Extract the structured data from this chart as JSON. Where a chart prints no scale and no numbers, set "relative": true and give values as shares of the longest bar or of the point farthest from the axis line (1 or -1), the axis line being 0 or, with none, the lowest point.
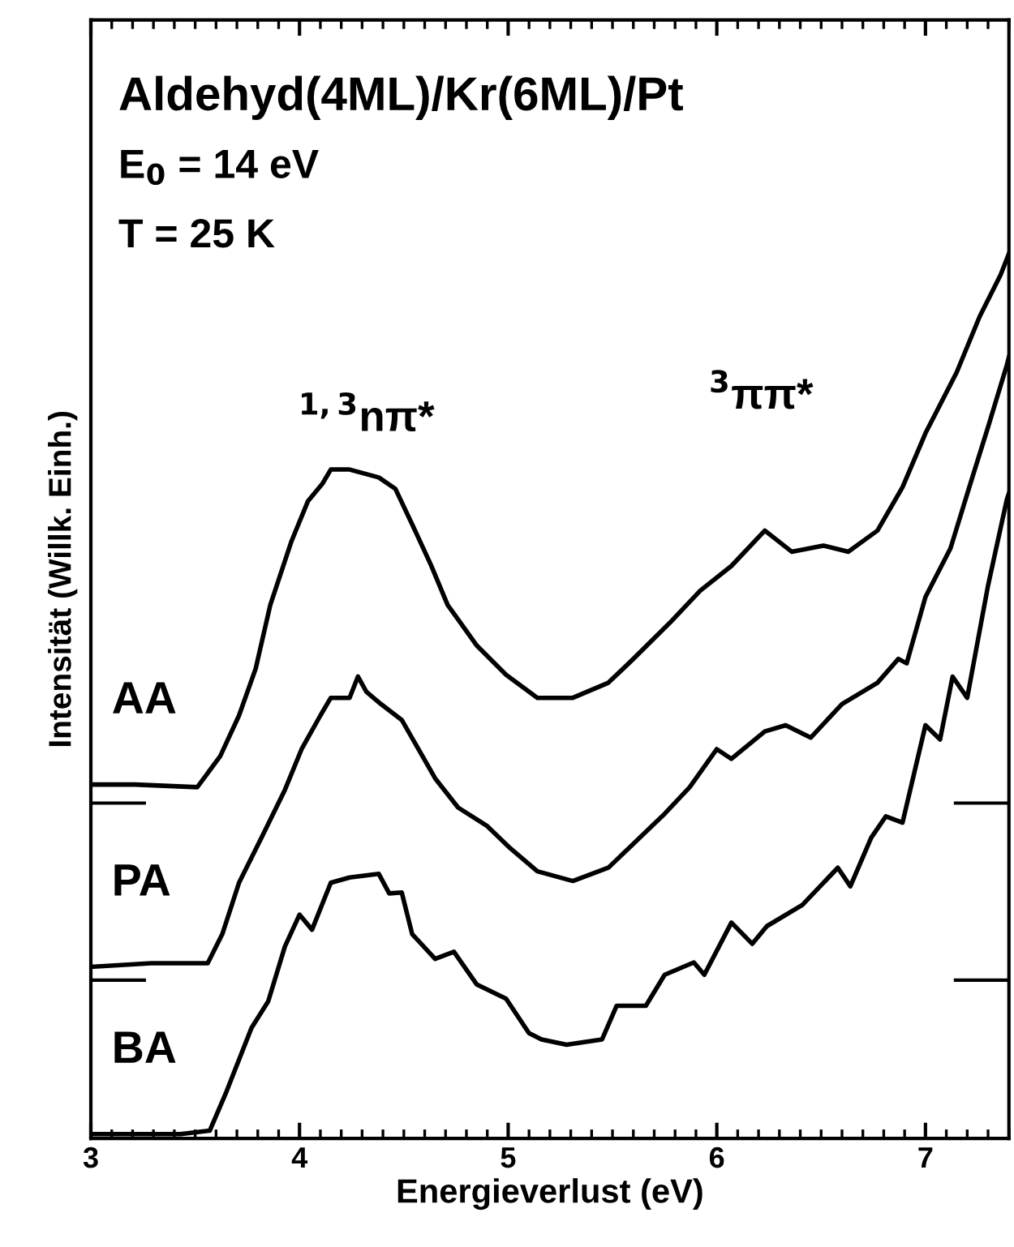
{
  "chart_data": {
    "type": "line",
    "relative": true,
    "title": "Aldehyd(4ML)/Kr(6ML)/Pt",
    "xlabel": "Energieverlust (eV)",
    "ylabel": "Intensität (Willk. Einh.)",
    "xlim": [
      3,
      7.4
    ],
    "xticks": [
      3,
      4,
      5,
      6,
      7
    ],
    "grid": false,
    "legend": "left",
    "annotations": [
      "E$_{0}$ = 14 eV",
      "T = 25 K",
      "$^{1,3}$nπ*",
      "$^{3}$ππ*"
    ],
    "ref_lines": [
      {
        "axis": "y",
        "value": 0.379,
        "color": "#000000"
      },
      {
        "axis": "y",
        "value": 0.179,
        "color": "#000000"
      }
    ],
    "series": [
      {
        "name": "AA",
        "color": "#000000",
        "x": [
          3.0,
          3.21,
          3.51,
          3.62,
          3.71,
          3.79,
          3.86,
          3.96,
          4.04,
          4.11,
          4.15,
          4.24,
          4.38,
          4.46,
          4.54,
          4.63,
          4.71,
          4.85,
          4.99,
          5.14,
          5.31,
          5.48,
          5.6,
          5.78,
          5.92,
          6.07,
          6.23,
          6.36,
          6.51,
          6.63,
          6.77,
          6.89,
          7.0,
          7.15,
          7.26,
          7.36,
          7.4
        ],
        "values": [
          0.4,
          0.4,
          0.397,
          0.432,
          0.478,
          0.531,
          0.603,
          0.674,
          0.72,
          0.74,
          0.756,
          0.756,
          0.747,
          0.734,
          0.694,
          0.648,
          0.603,
          0.557,
          0.524,
          0.498,
          0.498,
          0.515,
          0.542,
          0.584,
          0.619,
          0.647,
          0.687,
          0.663,
          0.67,
          0.663,
          0.687,
          0.736,
          0.797,
          0.866,
          0.929,
          0.976,
          1.0
        ]
      },
      {
        "name": "PA",
        "color": "#000000",
        "x": [
          3.0,
          3.29,
          3.56,
          3.63,
          3.71,
          3.82,
          3.93,
          4.01,
          4.1,
          4.15,
          4.24,
          4.28,
          4.32,
          4.39,
          4.49,
          4.57,
          4.65,
          4.76,
          4.9,
          5.01,
          5.14,
          5.31,
          5.48,
          5.6,
          5.75,
          5.87,
          6.0,
          6.07,
          6.23,
          6.33,
          6.45,
          6.6,
          6.77,
          6.87,
          6.91,
          7.0,
          7.12,
          7.21,
          7.3,
          7.39,
          7.4
        ],
        "values": [
          0.194,
          0.198,
          0.198,
          0.231,
          0.289,
          0.341,
          0.394,
          0.44,
          0.478,
          0.498,
          0.498,
          0.522,
          0.505,
          0.491,
          0.473,
          0.44,
          0.407,
          0.374,
          0.353,
          0.328,
          0.302,
          0.291,
          0.306,
          0.333,
          0.367,
          0.397,
          0.44,
          0.429,
          0.46,
          0.467,
          0.453,
          0.491,
          0.515,
          0.542,
          0.537,
          0.612,
          0.667,
          0.736,
          0.804,
          0.874,
          0.883
        ]
      },
      {
        "name": "BA",
        "color": "#000000",
        "x": [
          3.0,
          3.43,
          3.57,
          3.65,
          3.77,
          3.85,
          3.93,
          4.0,
          4.06,
          4.15,
          4.24,
          4.38,
          4.43,
          4.49,
          4.54,
          4.65,
          4.74,
          4.85,
          4.99,
          5.1,
          5.16,
          5.28,
          5.45,
          5.52,
          5.66,
          5.75,
          5.89,
          5.94,
          6.07,
          6.17,
          6.24,
          6.41,
          6.58,
          6.64,
          6.74,
          6.81,
          6.89,
          7.0,
          7.07,
          7.13,
          7.2,
          7.3,
          7.39,
          7.4
        ],
        "values": [
          0.005,
          0.005,
          0.009,
          0.053,
          0.125,
          0.155,
          0.217,
          0.253,
          0.236,
          0.289,
          0.295,
          0.299,
          0.277,
          0.278,
          0.231,
          0.203,
          0.211,
          0.174,
          0.158,
          0.119,
          0.112,
          0.106,
          0.112,
          0.15,
          0.15,
          0.185,
          0.199,
          0.185,
          0.244,
          0.22,
          0.24,
          0.264,
          0.306,
          0.285,
          0.34,
          0.364,
          0.357,
          0.467,
          0.451,
          0.522,
          0.498,
          0.625,
          0.722,
          0.729
        ]
      }
    ]
  }
}
